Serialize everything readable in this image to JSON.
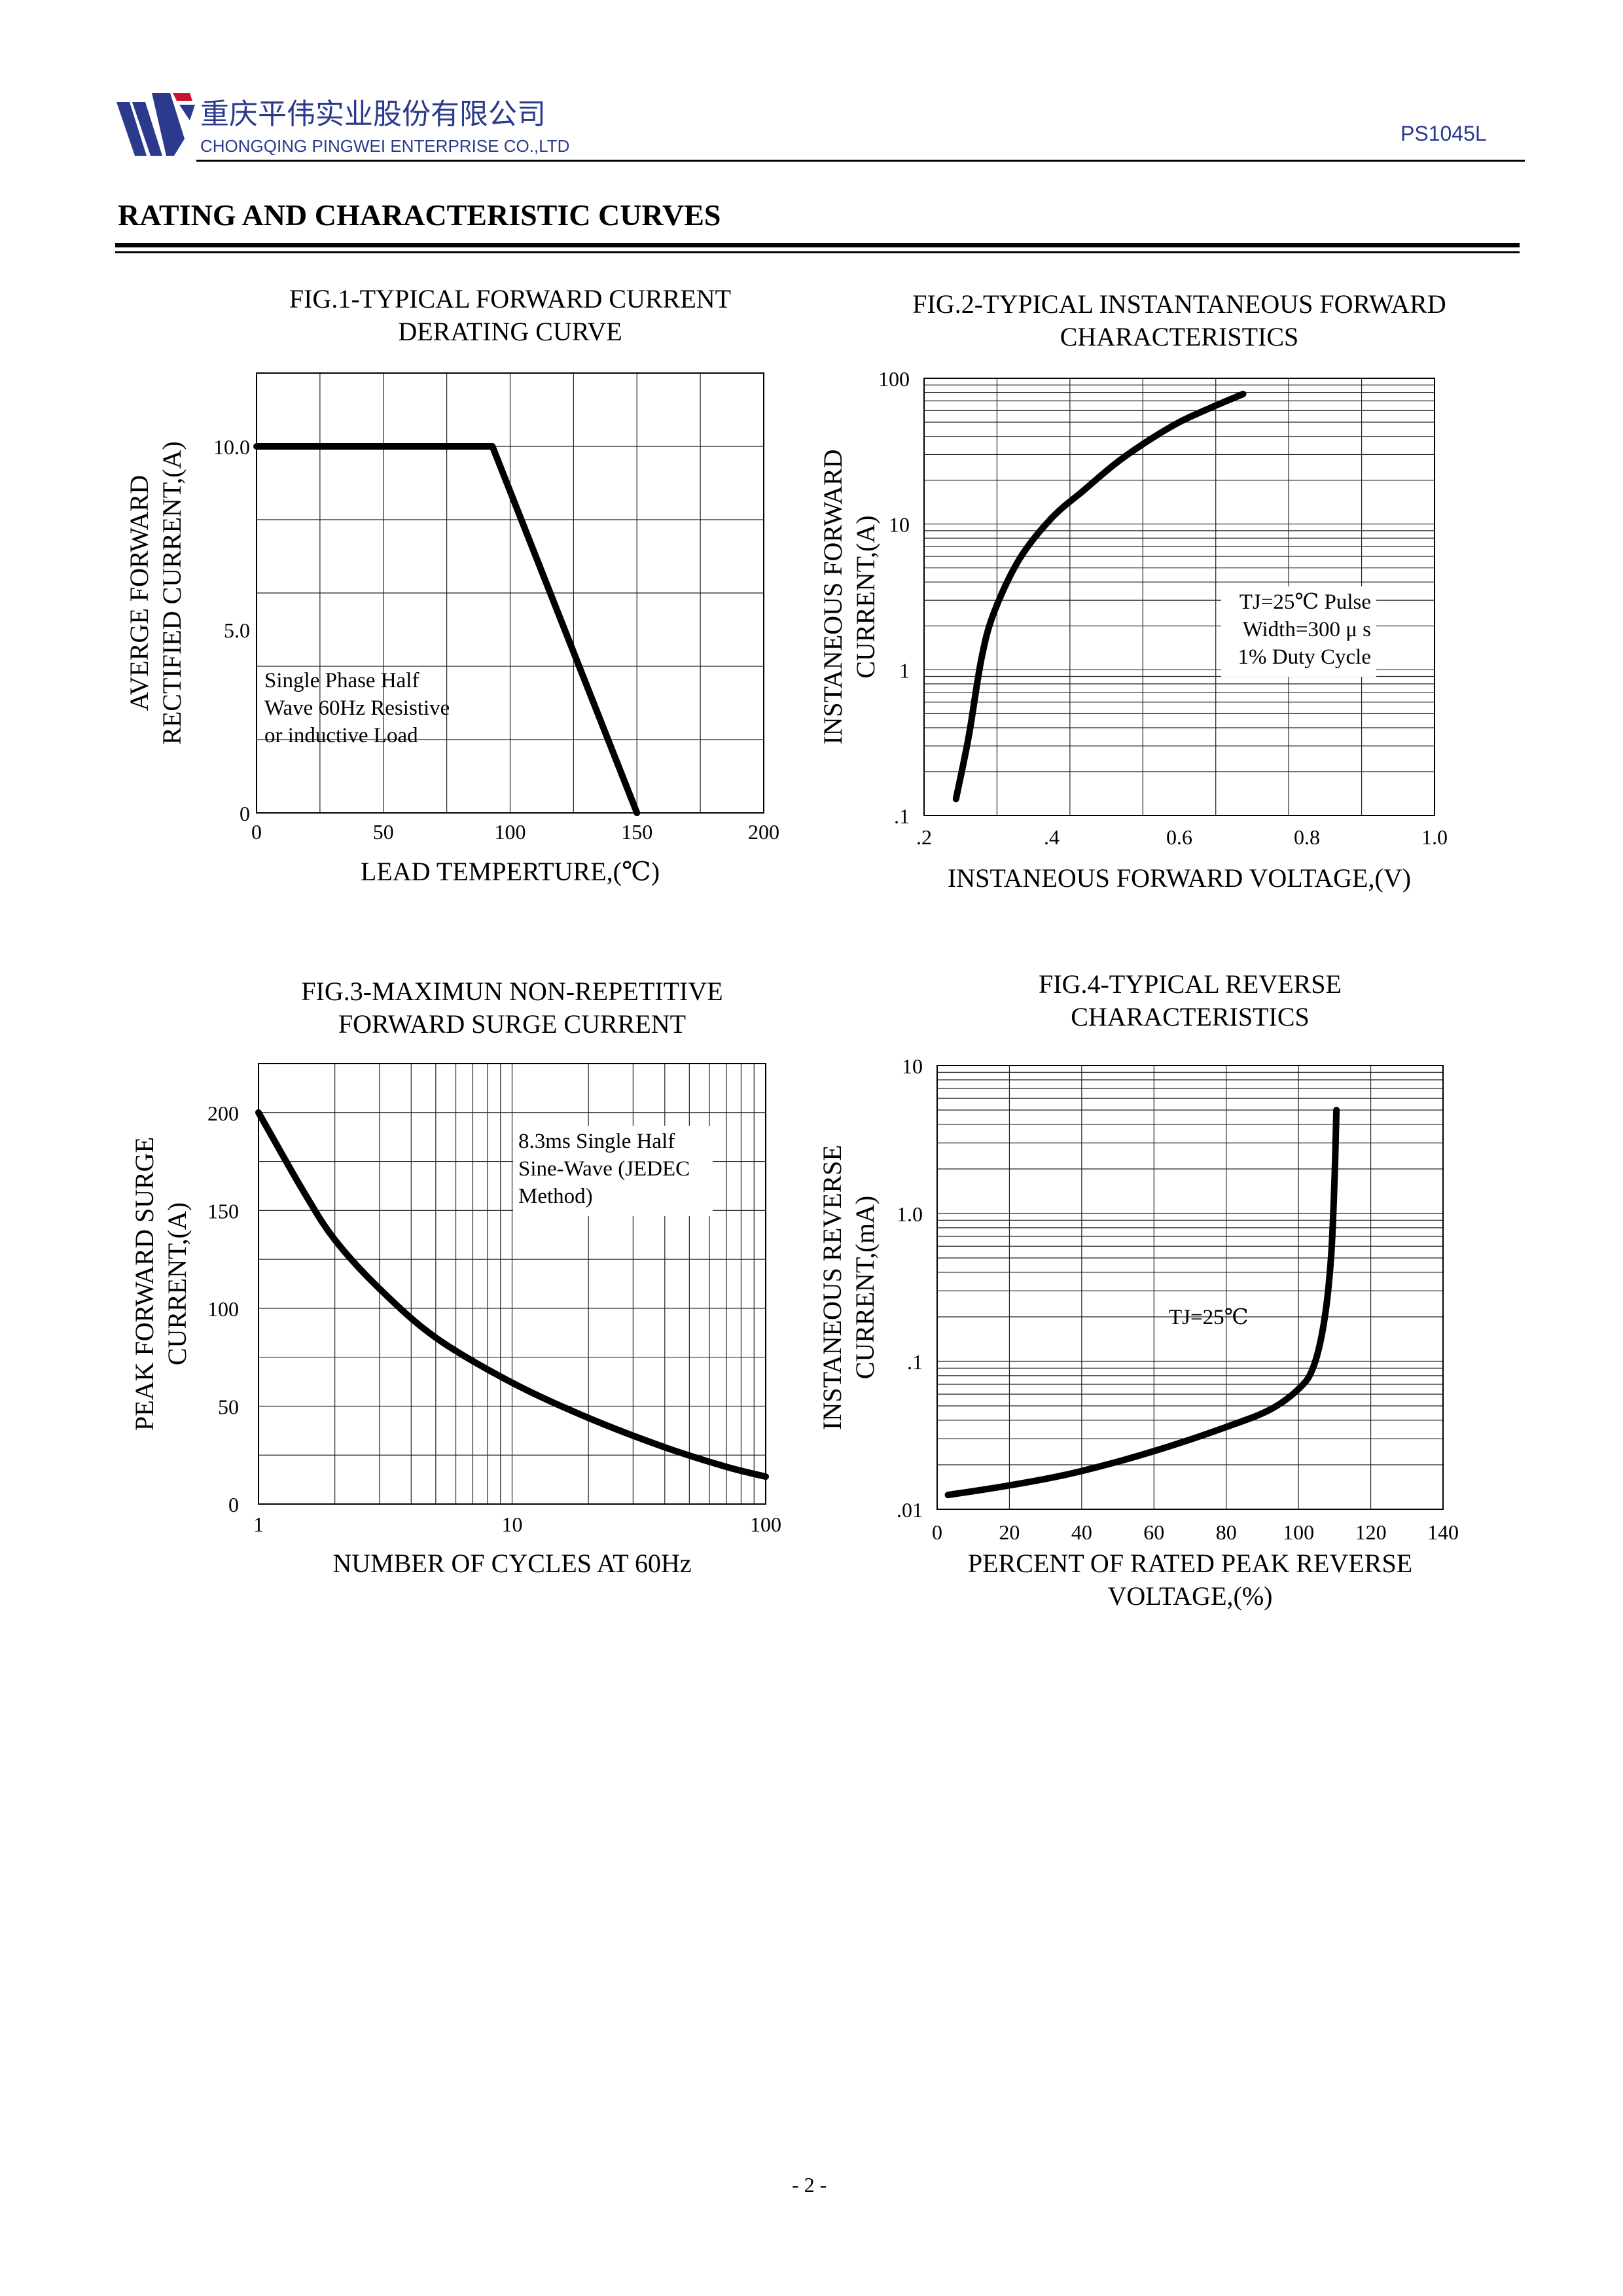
{
  "header": {
    "company_cn": "重庆平伟实业股份有限公司",
    "company_en": "CHONGQING PINGWEI ENTERPRISE CO.,LTD",
    "part_number": "PS1045L",
    "logo_icon": "pingwei-logo-icon",
    "brand_color": "#2b3a8c"
  },
  "section_title": "RATING AND CHARACTERISTIC CURVES",
  "page_number": "- 2 -",
  "chart_data": [
    {
      "id": "fig1",
      "type": "line",
      "title_lines": [
        "FIG.1-TYPICAL FORWARD CURRENT",
        "DERATING CURVE"
      ],
      "ylabel_lines": [
        "AVERGE FORWARD",
        "RECTIFIED CURRENT,(A)"
      ],
      "xlabel_lines": [
        "LEAD TEMPERTURE,(℃)"
      ],
      "x_scale": "linear",
      "y_scale": "linear",
      "xlim": [
        0,
        200
      ],
      "ylim": [
        0,
        12
      ],
      "x_ticks": [
        {
          "v": 0,
          "label": "0"
        },
        {
          "v": 50,
          "label": "50"
        },
        {
          "v": 100,
          "label": "100"
        },
        {
          "v": 150,
          "label": "150"
        },
        {
          "v": 200,
          "label": "200"
        }
      ],
      "y_ticks": [
        {
          "v": 0,
          "label": "0"
        },
        {
          "v": 5,
          "label": "5.0"
        },
        {
          "v": 10,
          "label": "10.0"
        }
      ],
      "grid": true,
      "series": [
        {
          "name": "derating",
          "x": [
            0,
            93,
            150
          ],
          "y": [
            10,
            10,
            0
          ]
        }
      ],
      "annotation_lines": [
        "Single Phase Half",
        "Wave 60Hz Resistive",
        "or inductive Load"
      ]
    },
    {
      "id": "fig2",
      "type": "line",
      "title_lines": [
        "FIG.2-TYPICAL INSTANTANEOUS FORWARD",
        "CHARACTERISTICS"
      ],
      "ylabel_lines": [
        "INSTANEOUS FORWARD",
        "CURRENT,(A)"
      ],
      "xlabel_lines": [
        "INSTANEOUS FORWARD VOLTAGE,(V)"
      ],
      "x_scale": "linear",
      "y_scale": "log",
      "xlim": [
        0.2,
        1.0
      ],
      "ylim": [
        0.1,
        100
      ],
      "x_ticks": [
        {
          "v": 0.2,
          "label": ".2"
        },
        {
          "v": 0.4,
          "label": ".4"
        },
        {
          "v": 0.6,
          "label": "0.6"
        },
        {
          "v": 0.8,
          "label": "0.8"
        },
        {
          "v": 1.0,
          "label": "1.0"
        }
      ],
      "y_ticks": [
        {
          "v": 0.1,
          "label": ".1"
        },
        {
          "v": 1,
          "label": "1"
        },
        {
          "v": 10,
          "label": "10"
        },
        {
          "v": 100,
          "label": "100"
        }
      ],
      "grid": true,
      "series": [
        {
          "name": "Tj=25C",
          "x": [
            0.25,
            0.27,
            0.29,
            0.31,
            0.35,
            0.4,
            0.45,
            0.5,
            0.55,
            0.6,
            0.65,
            0.7
          ],
          "y": [
            0.13,
            0.35,
            1.2,
            2.5,
            5.8,
            11,
            17,
            26,
            37,
            50,
            63,
            78
          ]
        }
      ],
      "annotation_lines": [
        "TJ=25℃ Pulse",
        "Width=300 μ s",
        "1% Duty Cycle"
      ]
    },
    {
      "id": "fig3",
      "type": "line",
      "title_lines": [
        "FIG.3-MAXIMUN NON-REPETITIVE",
        "FORWARD SURGE CURRENT"
      ],
      "ylabel_lines": [
        "PEAK FORWARD SURGE",
        "CURRENT,(A)"
      ],
      "xlabel_lines": [
        "NUMBER OF CYCLES AT 60Hz"
      ],
      "x_scale": "log",
      "y_scale": "linear",
      "xlim": [
        1,
        100
      ],
      "ylim": [
        0,
        225
      ],
      "x_ticks": [
        {
          "v": 1,
          "label": "1"
        },
        {
          "v": 10,
          "label": "10"
        },
        {
          "v": 100,
          "label": "100"
        }
      ],
      "y_ticks": [
        {
          "v": 0,
          "label": "0"
        },
        {
          "v": 50,
          "label": "50"
        },
        {
          "v": 100,
          "label": "100"
        },
        {
          "v": 150,
          "label": "150"
        },
        {
          "v": 200,
          "label": "200"
        }
      ],
      "grid": true,
      "series": [
        {
          "name": "surge",
          "x": [
            1,
            1.5,
            2,
            3,
            5,
            10,
            20,
            40,
            70,
            100
          ],
          "y": [
            200,
            160,
            135,
            110,
            85,
            62,
            44,
            29,
            19,
            14
          ]
        }
      ],
      "annotation_lines": [
        "8.3ms Single Half",
        "Sine-Wave (JEDEC",
        "Method)"
      ]
    },
    {
      "id": "fig4",
      "type": "line",
      "title_lines": [
        "FIG.4-TYPICAL REVERSE",
        "CHARACTERISTICS"
      ],
      "ylabel_lines": [
        "INSTANEOUS REVERSE",
        "CURRENT,(mA)"
      ],
      "xlabel_lines": [
        "PERCENT OF RATED PEAK REVERSE",
        "VOLTAGE,(%)"
      ],
      "x_scale": "linear",
      "y_scale": "log",
      "xlim": [
        0,
        140
      ],
      "ylim": [
        0.01,
        10
      ],
      "x_ticks": [
        {
          "v": 0,
          "label": "0"
        },
        {
          "v": 20,
          "label": "20"
        },
        {
          "v": 40,
          "label": "40"
        },
        {
          "v": 60,
          "label": "60"
        },
        {
          "v": 80,
          "label": "80"
        },
        {
          "v": 100,
          "label": "100"
        },
        {
          "v": 120,
          "label": "120"
        },
        {
          "v": 140,
          "label": "140"
        }
      ],
      "y_ticks": [
        {
          "v": 0.01,
          "label": ".01"
        },
        {
          "v": 0.1,
          "label": ".1"
        },
        {
          "v": 1,
          "label": "1.0"
        },
        {
          "v": 10,
          "label": "10"
        }
      ],
      "grid": true,
      "series": [
        {
          "name": "Tj=25C",
          "x": [
            3,
            20,
            35,
            50,
            65,
            80,
            92,
            100,
            104,
            107,
            109,
            110,
            110.5
          ],
          "y": [
            0.0125,
            0.0145,
            0.017,
            0.021,
            0.027,
            0.036,
            0.047,
            0.065,
            0.09,
            0.18,
            0.5,
            1.8,
            5
          ]
        }
      ],
      "annotation_lines": [
        "TJ=25℃"
      ]
    }
  ]
}
